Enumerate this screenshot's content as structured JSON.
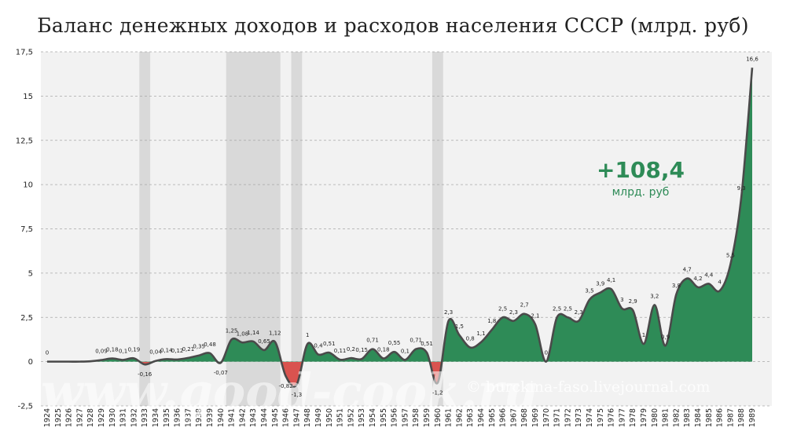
{
  "chart_data": {
    "type": "area",
    "title": "Баланс денежных доходов и расходов населения СССР (млрд. руб)",
    "xlabel": "",
    "ylabel": "",
    "ylim": [
      -2.5,
      17.5
    ],
    "yticks": [
      -2.5,
      0,
      2.5,
      5,
      7.5,
      10,
      12.5,
      15,
      17.5
    ],
    "ytick_labels": [
      "-2,5",
      "0",
      "2,5",
      "5",
      "7,5",
      "10",
      "12,5",
      "15",
      "17,5"
    ],
    "grid": true,
    "legend": "none",
    "colors": {
      "positive": "#2e8b57",
      "negative": "#d9534f",
      "line": "#4a4a4a",
      "band": "#d9d9d9",
      "plot_bg": "#f2f2f2"
    },
    "x": [
      1924,
      1925,
      1926,
      1927,
      1928,
      1929,
      1930,
      1931,
      1932,
      1933,
      1934,
      1935,
      1936,
      1937,
      1938,
      1939,
      1940,
      1941,
      1942,
      1943,
      1944,
      1945,
      1946,
      1947,
      1948,
      1949,
      1950,
      1951,
      1952,
      1953,
      1954,
      1955,
      1956,
      1957,
      1958,
      1959,
      1960,
      1961,
      1962,
      1963,
      1964,
      1965,
      1966,
      1967,
      1968,
      1969,
      1970,
      1971,
      1972,
      1973,
      1974,
      1975,
      1976,
      1977,
      1978,
      1979,
      1980,
      1981,
      1982,
      1983,
      1984,
      1985,
      1986,
      1987,
      1988,
      1989
    ],
    "values": [
      0,
      0,
      0,
      0,
      0.02,
      0.09,
      0.18,
      0.1,
      0.19,
      -0.16,
      0.04,
      0.14,
      0.12,
      0.21,
      0.35,
      0.48,
      -0.07,
      1.25,
      1.08,
      1.14,
      0.65,
      1.12,
      -0.82,
      -1.3,
      1,
      0.4,
      0.51,
      0.11,
      0.2,
      0.15,
      0.71,
      0.18,
      0.55,
      0.1,
      0.71,
      0.51,
      -1.2,
      2.3,
      1.5,
      0.8,
      1.1,
      1.8,
      2.5,
      2.3,
      2.7,
      2.1,
      0,
      2.5,
      2.5,
      2.3,
      3.5,
      3.9,
      4.1,
      3,
      2.9,
      1,
      3.2,
      0.9,
      3.8,
      4.7,
      4.2,
      4.4,
      4,
      5.5,
      9.3,
      16.6
    ],
    "data_labels": [
      "0",
      "",
      "",
      "",
      "",
      "0,09",
      "0,18",
      "0,1",
      "0,19",
      "-0,16",
      "0,04",
      "0,14",
      "0,12",
      "0,21",
      "0,35",
      "0,48",
      "-0,07",
      "1,25",
      "1,08",
      "1,14",
      "0,65",
      "1,12",
      "-0,82",
      "-1,3",
      "1",
      "0,4",
      "0,51",
      "0,11",
      "0,2",
      "0,15",
      "0,71",
      "0,18",
      "0,55",
      "0,1",
      "0,71",
      "0,51",
      "-1,2",
      "2,3",
      "1,5",
      "0,8",
      "1,1",
      "1,8",
      "2,5",
      "2,3",
      "2,7",
      "2,1",
      "0",
      "2,5",
      "2,5",
      "2,3",
      "3,5",
      "3,9",
      "4,1",
      "3",
      "2,9",
      "1",
      "3,2",
      "0,9",
      "3,8",
      "4,7",
      "4,2",
      "4,4",
      "4",
      "5,5",
      "9,3",
      "16,6"
    ],
    "shaded_years": [
      1933,
      [
        1941,
        1945
      ],
      1947,
      1960
    ],
    "annotation": {
      "value": "+108,4",
      "unit": "млрд. руб",
      "color": "#2e8b57"
    },
    "watermark": "www.good-cook.ru",
    "credit": "© burckina-faso.livejournal.com"
  }
}
